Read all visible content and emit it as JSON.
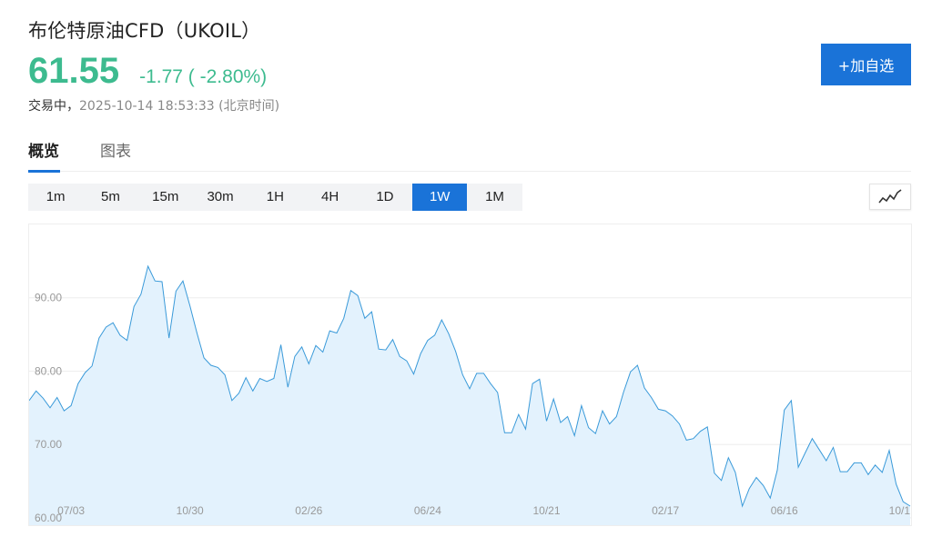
{
  "header": {
    "title": "布伦特原油CFD（UKOIL）",
    "price": "61.55",
    "change": "-1.77 ( -2.80%)",
    "status_label": "交易中，",
    "timestamp": "2025-10-14 18:53:33 (北京时间)",
    "add_button": "+加自选"
  },
  "colors": {
    "up_down_green": "#3dbb8f",
    "accent_blue": "#1a73d8",
    "line": "#3a9ad9",
    "area_fill": "#e3f2fd"
  },
  "tabs": [
    {
      "label": "概览",
      "active": true
    },
    {
      "label": "图表",
      "active": false
    }
  ],
  "ranges": [
    {
      "label": "1m",
      "active": false
    },
    {
      "label": "5m",
      "active": false
    },
    {
      "label": "15m",
      "active": false
    },
    {
      "label": "30m",
      "active": false
    },
    {
      "label": "1H",
      "active": false
    },
    {
      "label": "4H",
      "active": false
    },
    {
      "label": "1D",
      "active": false
    },
    {
      "label": "1W",
      "active": true
    },
    {
      "label": "1M",
      "active": false
    }
  ],
  "chart_type_icon": "line-chart-icon",
  "chart_data": {
    "type": "area",
    "title": "",
    "xlabel": "",
    "ylabel": "",
    "ylim": [
      59,
      100
    ],
    "y_ticks": [
      60,
      70,
      80,
      90
    ],
    "y_tick_labels": [
      "60.00",
      "70.00",
      "80.00",
      "90.00"
    ],
    "x_tick_labels": [
      "07/03",
      "10/30",
      "02/26",
      "06/24",
      "10/21",
      "02/17",
      "06/16",
      "10/1"
    ],
    "x_tick_positions": [
      6,
      23,
      40,
      57,
      74,
      91,
      108,
      125
    ],
    "grid": true,
    "legend": "none",
    "series": [
      {
        "values": [
          76,
          77.3,
          76.3,
          75,
          76.4,
          74.6,
          75.3,
          78.3,
          79.8,
          80.7,
          84.5,
          86,
          86.6,
          84.9,
          84.2,
          88.8,
          90.5,
          94.3,
          92.3,
          92.2,
          84.5,
          90.9,
          92.3,
          88.9,
          85.2,
          81.8,
          80.8,
          80.5,
          79.5,
          76,
          77,
          79.1,
          77.3,
          79,
          78.6,
          79,
          83.6,
          77.8,
          82,
          83.3,
          81,
          83.5,
          82.6,
          85.5,
          85.2,
          87.2,
          91,
          90.3,
          87.2,
          88.1,
          83,
          82.9,
          84.3,
          82,
          81.4,
          79.6,
          82.4,
          84.2,
          84.9,
          87,
          85.1,
          82.7,
          79.5,
          77.6,
          79.7,
          79.7,
          78.3,
          77.1,
          71.6,
          71.6,
          74.1,
          72.1,
          78.3,
          78.9,
          73.2,
          76.2,
          73,
          73.8,
          71.2,
          75.3,
          72.3,
          71.5,
          74.6,
          72.8,
          73.8,
          77.1,
          79.9,
          80.8,
          77.7,
          76.4,
          74.8,
          74.6,
          73.9,
          72.8,
          70.6,
          70.8,
          71.8,
          72.4,
          66.1,
          65.1,
          68.2,
          66.2,
          61.6,
          64,
          65.5,
          64.4,
          62.7,
          66.5,
          74.7,
          76,
          66.9,
          68.9,
          70.8,
          69.3,
          67.8,
          69.6,
          66.3,
          66.3,
          67.5,
          67.5,
          65.9,
          67.2,
          66.2,
          69.2,
          64.6,
          62.2,
          61.6
        ]
      }
    ]
  }
}
